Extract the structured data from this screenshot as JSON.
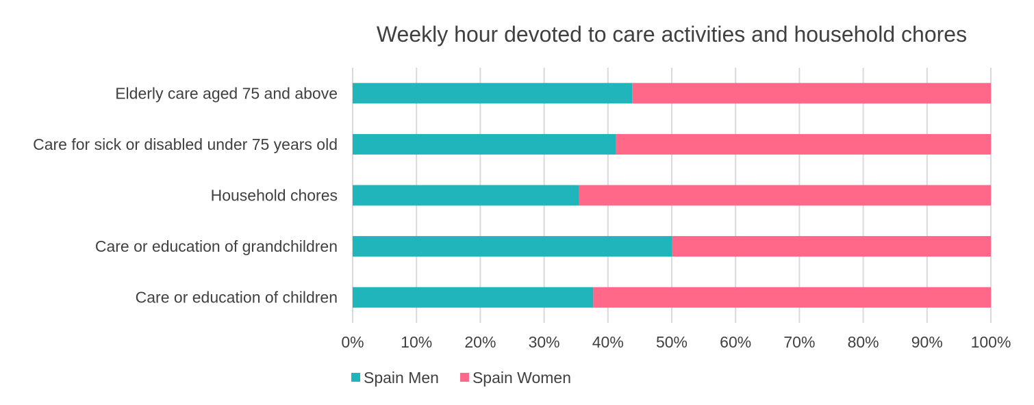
{
  "chart_data": {
    "type": "bar",
    "orientation": "horizontal",
    "stacked": "percent",
    "title": "Weekly hour devoted to care activities and household chores",
    "xlabel": "",
    "ylabel": "",
    "categories": [
      "Elderly care aged 75 and above",
      "Care for sick or disabled under 75 years old",
      "Household chores",
      "Care or education of grandchildren",
      "Care or education of children"
    ],
    "series": [
      {
        "name": "Spain Men",
        "color": "#1fb5bb",
        "values": [
          43.8,
          41.2,
          35.5,
          50.0,
          37.7
        ]
      },
      {
        "name": "Spain Women",
        "color": "#ff6888",
        "values": [
          56.2,
          58.8,
          64.5,
          50.0,
          62.3
        ]
      }
    ],
    "xlim": [
      0,
      100
    ],
    "xticks": [
      "0%",
      "10%",
      "20%",
      "30%",
      "40%",
      "50%",
      "60%",
      "70%",
      "80%",
      "90%",
      "100%"
    ],
    "grid": "vertical",
    "legend": "bottom"
  }
}
